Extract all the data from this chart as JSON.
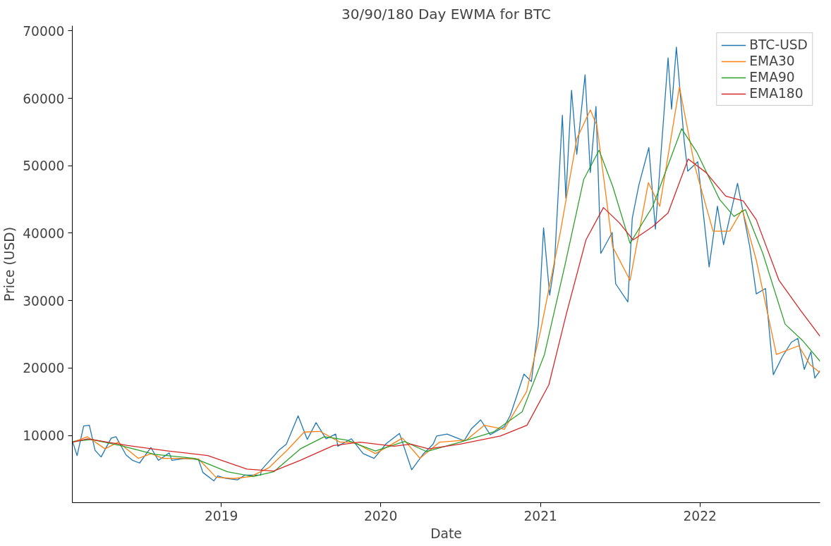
{
  "chart_data": {
    "type": "line",
    "title": "30/90/180 Day EWMA for BTC",
    "xlabel": "Date",
    "ylabel": "Price (USD)",
    "xlim": [
      "2018-01-25",
      "2022-10-03"
    ],
    "ylim": [
      20,
      70780
    ],
    "xticks": [
      {
        "value": "2019-01-01",
        "label": "2019"
      },
      {
        "value": "2020-01-01",
        "label": "2020"
      },
      {
        "value": "2021-01-01",
        "label": "2021"
      },
      {
        "value": "2022-01-01",
        "label": "2022"
      }
    ],
    "yticks": [
      10000,
      20000,
      30000,
      40000,
      50000,
      60000,
      70000
    ],
    "grid": false,
    "legend": "top right",
    "marker": "none",
    "line_style": "solid",
    "series": [
      {
        "name": "BTC-USD",
        "color": "#1f77b4",
        "x": [
          "2018-01-26",
          "2018-02-05",
          "2018-02-20",
          "2018-03-05",
          "2018-03-18",
          "2018-04-01",
          "2018-04-24",
          "2018-05-05",
          "2018-05-28",
          "2018-06-12",
          "2018-06-28",
          "2018-07-24",
          "2018-08-10",
          "2018-09-04",
          "2018-09-10",
          "2018-10-10",
          "2018-11-10",
          "2018-11-20",
          "2018-12-15",
          "2018-12-24",
          "2019-01-10",
          "2019-02-07",
          "2019-02-24",
          "2019-04-01",
          "2019-04-03",
          "2019-05-13",
          "2019-05-30",
          "2019-06-26",
          "2019-07-17",
          "2019-08-06",
          "2019-08-29",
          "2019-09-20",
          "2019-09-25",
          "2019-10-26",
          "2019-11-22",
          "2019-12-17",
          "2020-01-14",
          "2020-02-13",
          "2020-03-12",
          "2020-04-07",
          "2020-04-30",
          "2020-05-08",
          "2020-06-01",
          "2020-07-10",
          "2020-07-27",
          "2020-08-17",
          "2020-09-08",
          "2020-10-10",
          "2020-10-24",
          "2020-11-24",
          "2020-12-11",
          "2020-12-27",
          "2021-01-08",
          "2021-01-22",
          "2021-02-02",
          "2021-02-20",
          "2021-02-28",
          "2021-03-13",
          "2021-03-25",
          "2021-04-13",
          "2021-04-25",
          "2021-05-08",
          "2021-05-19",
          "2021-06-14",
          "2021-06-22",
          "2021-07-20",
          "2021-07-30",
          "2021-08-14",
          "2021-09-06",
          "2021-09-21",
          "2021-10-20",
          "2021-10-28",
          "2021-11-08",
          "2021-11-26",
          "2021-12-04",
          "2021-12-27",
          "2022-01-22",
          "2022-02-10",
          "2022-02-24",
          "2022-03-28",
          "2022-04-25",
          "2022-05-10",
          "2022-05-31",
          "2022-06-18",
          "2022-07-08",
          "2022-07-29",
          "2022-08-13",
          "2022-08-28",
          "2022-09-12",
          "2022-09-21",
          "2022-10-03"
        ],
        "values": [
          9000,
          7000,
          11400,
          11500,
          7800,
          6800,
          9600,
          9800,
          7100,
          6300,
          5900,
          8200,
          6300,
          7400,
          6300,
          6600,
          6400,
          4500,
          3250,
          4000,
          3650,
          3400,
          4100,
          4100,
          4900,
          7800,
          8700,
          12900,
          9400,
          11900,
          9500,
          10200,
          8400,
          9500,
          7300,
          6600,
          8800,
          10300,
          4900,
          7200,
          8700,
          9900,
          10200,
          9200,
          11000,
          12300,
          10100,
          11300,
          13000,
          19100,
          18000,
          26300,
          40800,
          30800,
          35500,
          57500,
          45200,
          61200,
          51700,
          63500,
          49000,
          58800,
          37000,
          40100,
          32500,
          29800,
          42200,
          47100,
          52700,
          40600,
          66000,
          58400,
          67600,
          53600,
          49200,
          50600,
          35000,
          44000,
          38300,
          47400,
          38000,
          31000,
          31800,
          19000,
          21600,
          23800,
          24400,
          19800,
          22400,
          18500,
          19600
        ]
      },
      {
        "name": "EMA30",
        "color": "#ff7f0e",
        "x": [
          "2018-01-26",
          "2018-03-01",
          "2018-04-10",
          "2018-05-10",
          "2018-06-25",
          "2018-07-25",
          "2018-08-20",
          "2018-10-01",
          "2018-11-10",
          "2018-12-20",
          "2019-01-30",
          "2019-03-10",
          "2019-04-20",
          "2019-06-01",
          "2019-07-10",
          "2019-08-15",
          "2019-09-30",
          "2019-11-01",
          "2019-12-20",
          "2020-02-20",
          "2020-03-31",
          "2020-05-15",
          "2020-07-15",
          "2020-08-25",
          "2020-10-10",
          "2020-11-30",
          "2021-01-01",
          "2021-02-15",
          "2021-03-25",
          "2021-04-25",
          "2021-05-10",
          "2021-06-15",
          "2021-07-25",
          "2021-09-05",
          "2021-10-01",
          "2021-11-15",
          "2021-12-20",
          "2022-01-31",
          "2022-03-10",
          "2022-04-08",
          "2022-05-10",
          "2022-06-25",
          "2022-08-15",
          "2022-09-10",
          "2022-10-03"
        ],
        "values": [
          9000,
          9800,
          8000,
          9000,
          6600,
          7300,
          6600,
          6600,
          6500,
          3800,
          3600,
          3900,
          5200,
          7800,
          10500,
          10600,
          9000,
          9000,
          7300,
          9600,
          6600,
          9000,
          9300,
          11500,
          10900,
          16500,
          25500,
          40000,
          54000,
          58300,
          56000,
          38000,
          33000,
          47500,
          44000,
          61700,
          50000,
          40300,
          40300,
          43500,
          36000,
          22000,
          23300,
          20500,
          19300
        ]
      },
      {
        "name": "EMA90",
        "color": "#2ca02c",
        "x": [
          "2018-01-26",
          "2018-03-10",
          "2018-05-15",
          "2018-08-01",
          "2018-11-01",
          "2019-01-15",
          "2019-03-15",
          "2019-05-01",
          "2019-07-01",
          "2019-08-25",
          "2019-10-15",
          "2019-12-20",
          "2020-02-25",
          "2020-04-15",
          "2020-07-01",
          "2020-09-15",
          "2020-11-20",
          "2021-01-10",
          "2021-02-25",
          "2021-04-10",
          "2021-05-15",
          "2021-06-15",
          "2021-07-25",
          "2021-09-15",
          "2021-11-20",
          "2021-12-25",
          "2022-02-15",
          "2022-03-20",
          "2022-04-15",
          "2022-05-25",
          "2022-07-15",
          "2022-08-25",
          "2022-10-03"
        ],
        "values": [
          9100,
          9400,
          8500,
          7200,
          6600,
          4600,
          3900,
          4600,
          8000,
          9800,
          9300,
          7700,
          9100,
          7600,
          9000,
          10500,
          13500,
          22000,
          35000,
          48000,
          52300,
          47000,
          38500,
          44000,
          55500,
          52000,
          45000,
          42500,
          43500,
          37000,
          26500,
          24000,
          21000
        ]
      },
      {
        "name": "EMA180",
        "color": "#d62728",
        "x": [
          "2018-01-26",
          "2018-03-01",
          "2018-06-01",
          "2018-09-01",
          "2018-12-01",
          "2019-03-01",
          "2019-05-01",
          "2019-07-01",
          "2019-09-15",
          "2019-11-15",
          "2020-02-01",
          "2020-03-10",
          "2020-04-20",
          "2020-07-01",
          "2020-10-01",
          "2020-12-01",
          "2021-01-20",
          "2021-03-01",
          "2021-04-15",
          "2021-05-25",
          "2021-07-01",
          "2021-08-01",
          "2021-09-15",
          "2021-10-20",
          "2021-12-05",
          "2022-01-15",
          "2022-03-01",
          "2022-04-10",
          "2022-05-10",
          "2022-07-01",
          "2022-08-20",
          "2022-10-03"
        ],
        "values": [
          9000,
          9500,
          8500,
          7700,
          7000,
          5000,
          4700,
          6300,
          8500,
          9000,
          8400,
          8700,
          8000,
          8700,
          9900,
          11500,
          17500,
          28000,
          39000,
          43800,
          41500,
          39000,
          41000,
          43000,
          51000,
          49000,
          45500,
          44800,
          42000,
          33000,
          28500,
          24700
        ]
      }
    ]
  }
}
